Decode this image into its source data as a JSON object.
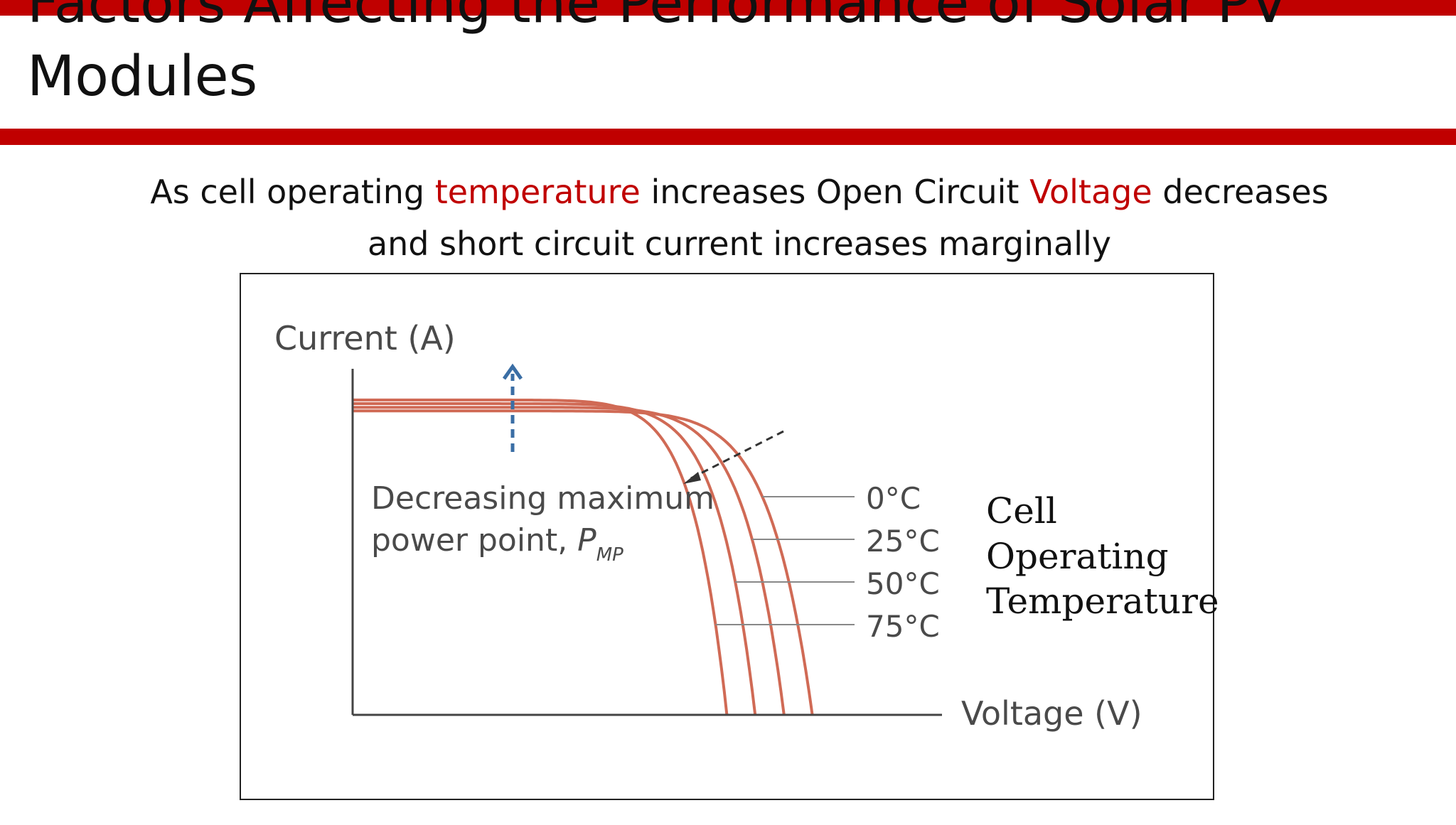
{
  "slide": {
    "title_line1": "Factors Affecting the Performance of Solar PV",
    "title_line2": "Modules",
    "subtitle": {
      "p1": "As cell operating ",
      "p2": "temperature",
      "p3": " increases Open Circuit ",
      "p4": "Voltage",
      "p5": " decreases",
      "line2": "and short circuit current increases marginally"
    },
    "colors": {
      "accent_bar": "#c00000",
      "highlight_text": "#c00000",
      "curve": "#d06a55",
      "arrow_up": "#3a6ea5"
    }
  },
  "chart_data": {
    "type": "line",
    "xlabel": "Voltage (V)",
    "ylabel": "Current (A)",
    "grid": false,
    "series": [
      {
        "name": "0°C",
        "isc": 1.0,
        "voc": 0.78
      },
      {
        "name": "25°C",
        "isc": 1.012,
        "voc": 0.732
      },
      {
        "name": "50°C",
        "isc": 1.024,
        "voc": 0.683
      },
      {
        "name": "75°C",
        "isc": 1.036,
        "voc": 0.635
      }
    ],
    "ylim": [
      0,
      1.3
    ],
    "xlim": [
      0,
      1.0
    ],
    "annotation": {
      "line1": "Decreasing maximum",
      "line2": "power point, ",
      "symbol": "P",
      "subscript": "MP"
    },
    "legend_title": [
      "Cell",
      "Operating",
      "Temperature"
    ]
  }
}
